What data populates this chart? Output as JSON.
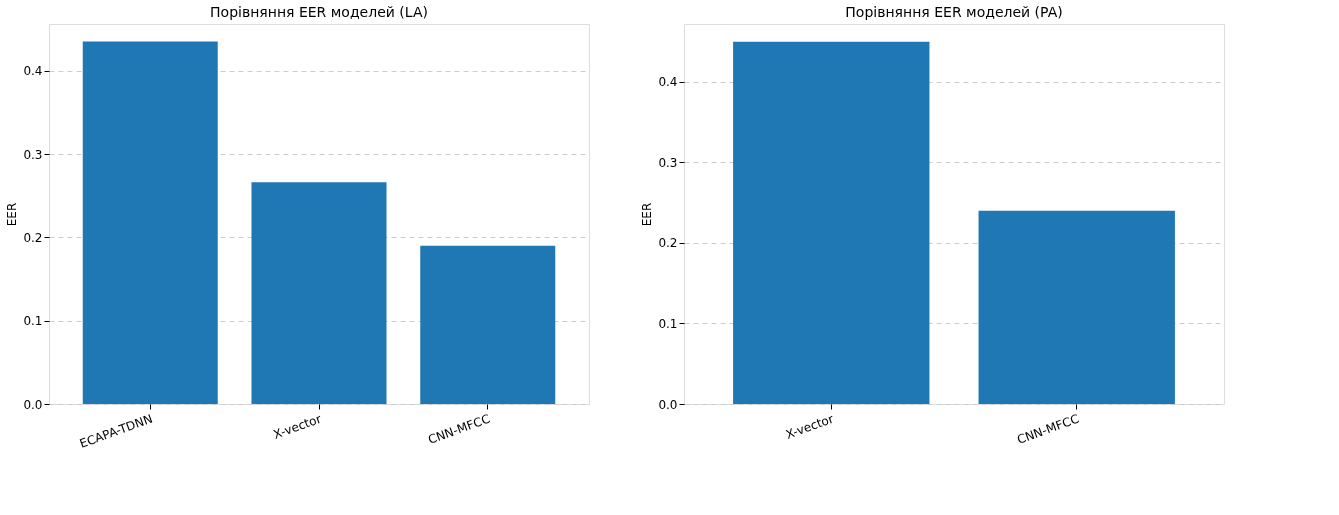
{
  "chart_data": [
    {
      "type": "bar",
      "title": "Порівняння EER моделей (LA)",
      "ylabel": "EER",
      "categories": [
        "ECAPA-TDNN",
        "X-vector",
        "CNN-MFCC"
      ],
      "values": [
        0.435,
        0.266,
        0.19
      ],
      "color": "#1f77b4",
      "ylim": [
        0,
        0.456
      ],
      "yticks": [
        {
          "value": 0,
          "label": "0.0"
        },
        0.1,
        0.2,
        0.3,
        0.4
      ],
      "grid": "y"
    },
    {
      "type": "bar",
      "title": "Порівняння EER моделей (PA)",
      "ylabel": "EER",
      "categories": [
        "X-vector",
        "CNN-MFCC"
      ],
      "values": [
        0.45,
        0.24
      ],
      "color": "#1f77b4",
      "ylim": [
        0,
        0.472
      ],
      "yticks": [
        {
          "value": 0,
          "label": "0.0"
        },
        0.1,
        0.2,
        0.3,
        0.4
      ],
      "grid": "y"
    }
  ]
}
